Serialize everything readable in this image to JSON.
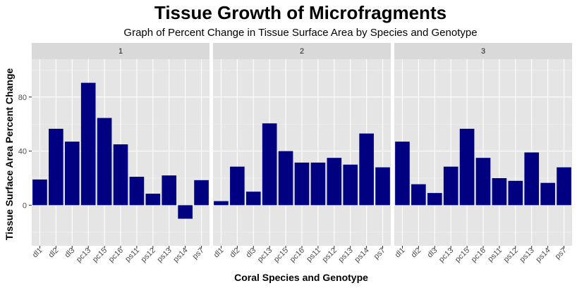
{
  "chart_data": {
    "type": "bar",
    "title": "Tissue Growth of Microfragments",
    "subtitle": "Graph of Percent Change in Tissue Surface Area by Species and Genotype",
    "xlabel": "Coral Species and Genotype",
    "ylabel": "Tissue Surface Area Percent Change",
    "categories": [
      "dl1",
      "dl2",
      "dl3",
      "pc13",
      "pc15",
      "pc16",
      "ps11",
      "ps12",
      "ps13",
      "ps14",
      "ps7"
    ],
    "ylim": [
      -30,
      108
    ],
    "yticks": [
      0,
      40,
      80
    ],
    "grid": true,
    "bar_color": "#000080",
    "panel_background": "#e5e5e5",
    "strip_background": "#d9d9d9",
    "facets": [
      {
        "label": "1",
        "values": [
          19,
          56.5,
          47,
          90.5,
          64.5,
          45,
          21,
          8.5,
          22,
          -10,
          18.5
        ]
      },
      {
        "label": "2",
        "values": [
          3,
          28.5,
          10,
          60.5,
          40,
          31.5,
          31.5,
          35,
          30,
          53,
          28
        ]
      },
      {
        "label": "3",
        "values": [
          47,
          15.5,
          9,
          28.5,
          56.5,
          35,
          20,
          18,
          39,
          16.5,
          28
        ]
      }
    ]
  }
}
